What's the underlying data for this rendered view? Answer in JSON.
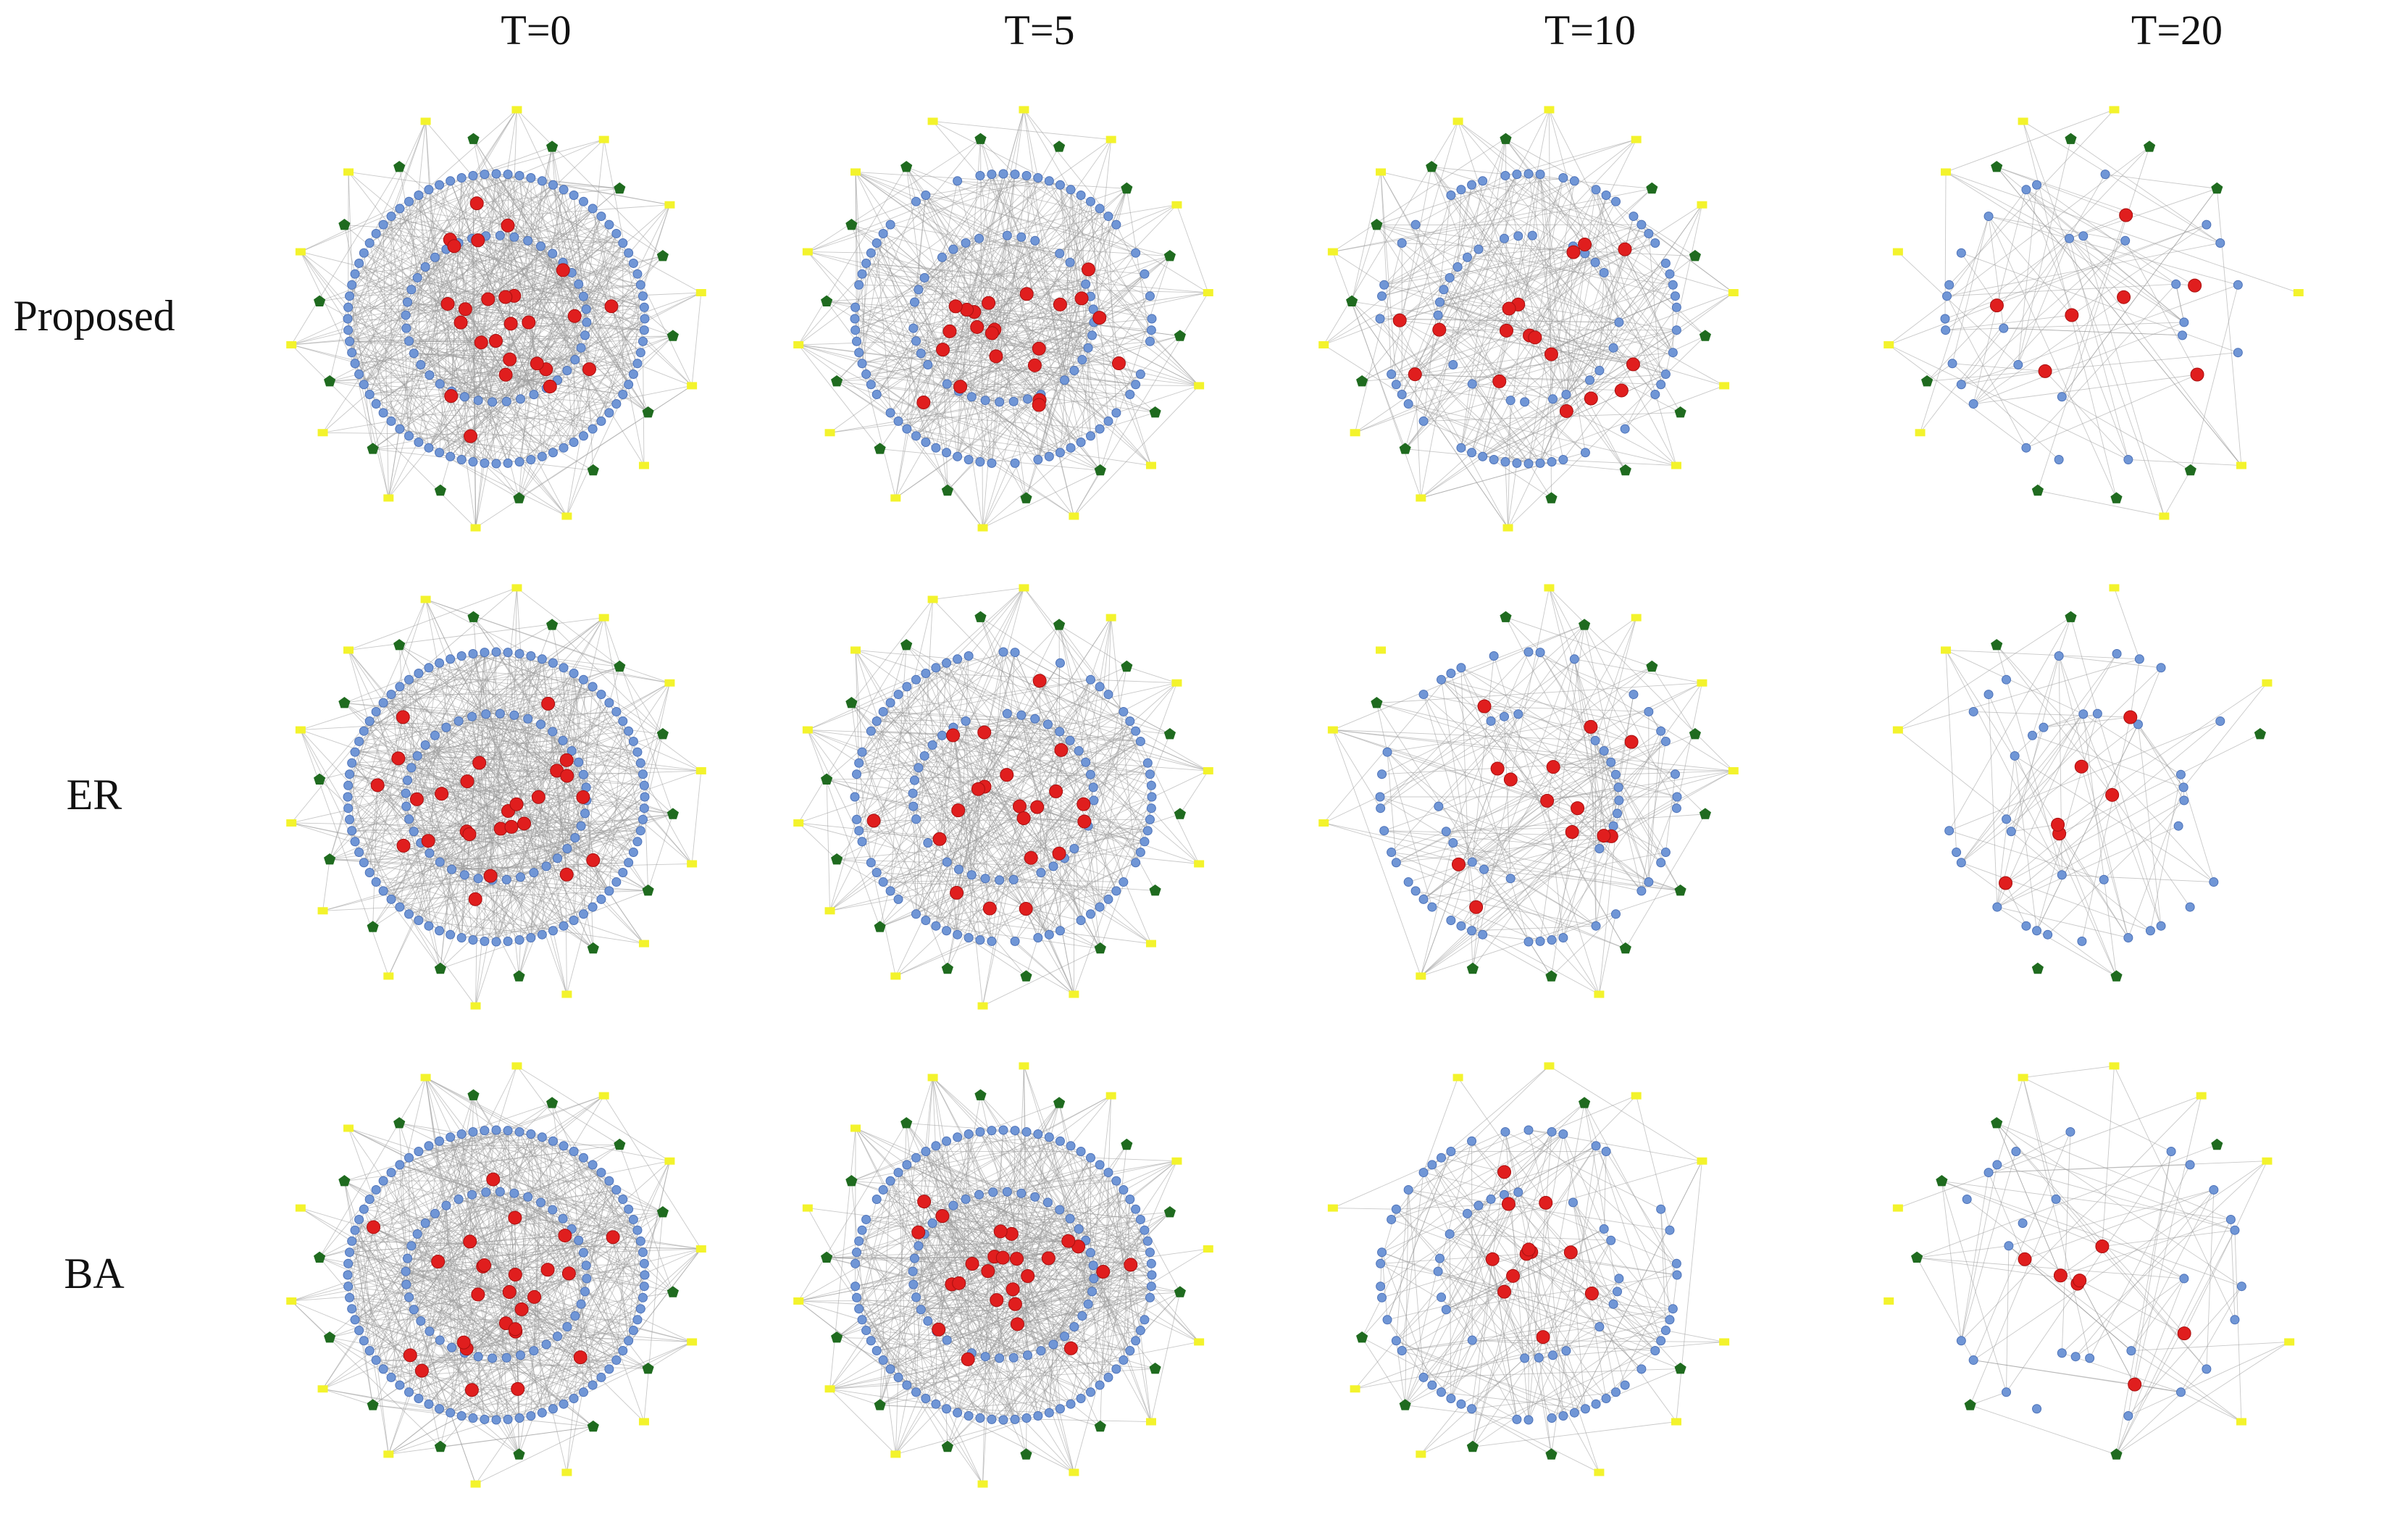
{
  "figure": {
    "columns": [
      {
        "label": "T=0"
      },
      {
        "label": "T=5"
      },
      {
        "label": "T=10"
      },
      {
        "label": "T=20"
      }
    ],
    "rows": [
      {
        "label": "Proposed"
      },
      {
        "label": "ER"
      },
      {
        "label": "BA"
      }
    ]
  },
  "colors": {
    "blue_node": "#7096d6",
    "red_node": "#e01e1e",
    "green_node": "#1f6b1f",
    "yellow_node": "#f3f32c",
    "edge": "#9a9a9a",
    "background": "#ffffff"
  },
  "legend_node_types": [
    "blue",
    "red",
    "green",
    "yellow"
  ]
}
